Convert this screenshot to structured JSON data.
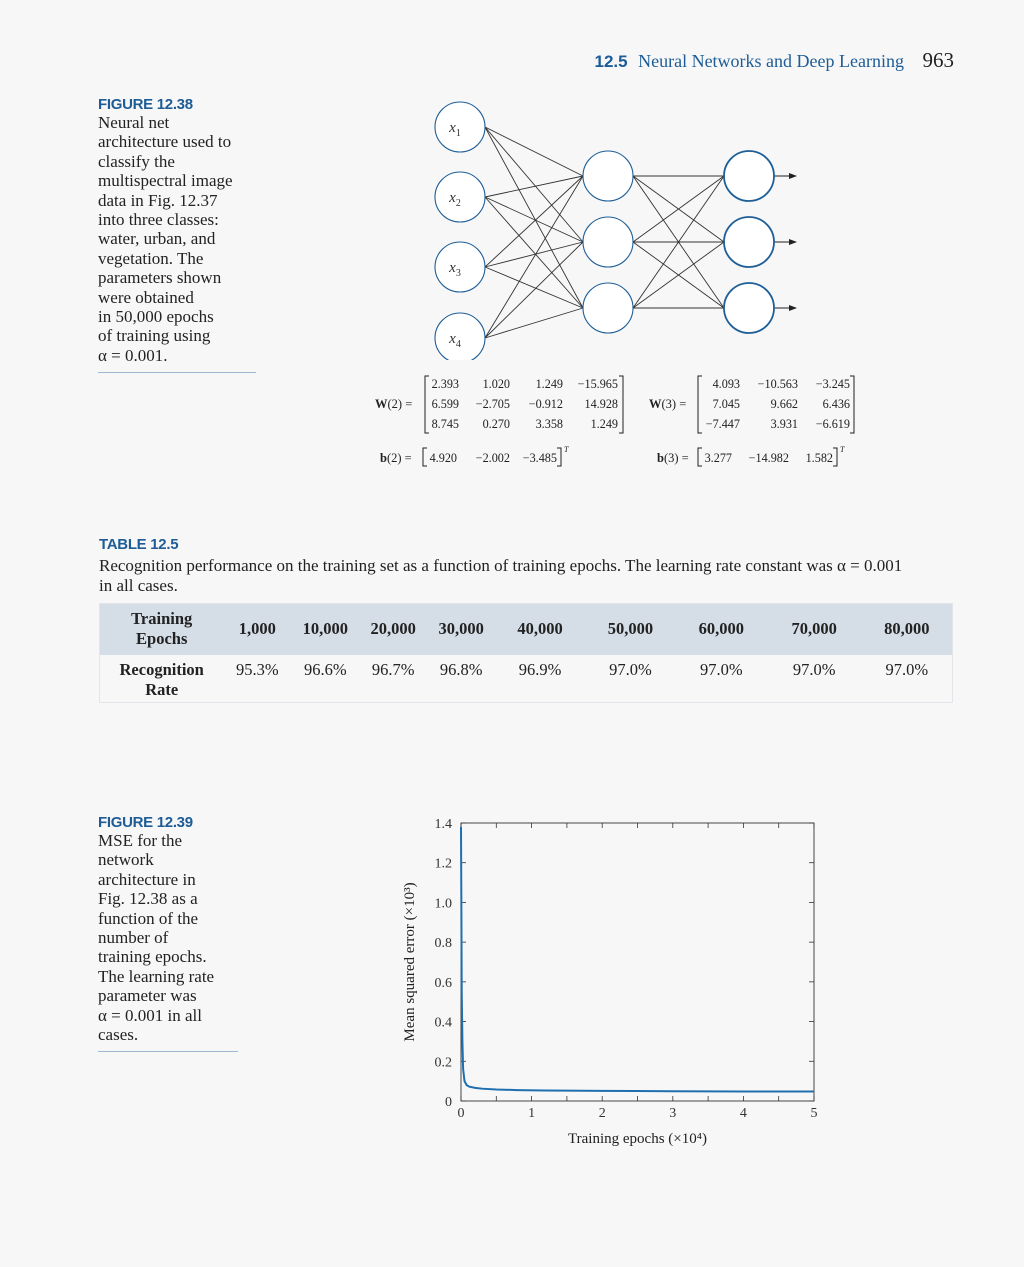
{
  "header": {
    "section_number": "12.5",
    "section_title": "Neural Networks and Deep Learning",
    "page_number": "963"
  },
  "figure_38": {
    "label": "FIGURE 12.38",
    "caption_lines": [
      "Neural net",
      "architecture used to",
      "classify the",
      "multispectral image",
      "data in Fig. 12.37",
      "into three classes:",
      "water, urban, and",
      "vegetation. The",
      "parameters shown",
      "were obtained",
      "in 50,000 epochs",
      "of training using",
      "α = 0.001."
    ],
    "inputs": [
      "x1",
      "x2",
      "x3",
      "x4"
    ],
    "W2_label": "W(2) =",
    "W2": [
      [
        "2.393",
        "1.020",
        "1.249",
        "−15.965"
      ],
      [
        "6.599",
        "−2.705",
        "−0.912",
        "14.928"
      ],
      [
        "8.745",
        "0.270",
        "3.358",
        "1.249"
      ]
    ],
    "W3_label": "W(3) =",
    "W3": [
      [
        "4.093",
        "−10.563",
        "−3.245"
      ],
      [
        "7.045",
        "9.662",
        "6.436"
      ],
      [
        "−7.447",
        "3.931",
        "−6.619"
      ]
    ],
    "b2_label": "b(2) =",
    "b2": [
      "4.920",
      "−2.002",
      "−3.485"
    ],
    "b3_label": "b(3) =",
    "b3": [
      "3.277",
      "−14.982",
      "1.582"
    ],
    "transpose": "T"
  },
  "table": {
    "label": "TABLE 12.5",
    "caption_lines": [
      "Recognition performance on the training set as a function of training epochs. The learning rate constant was α = 0.001",
      "in all cases."
    ],
    "row1_label_lines": [
      "Training",
      "Epochs"
    ],
    "epochs": [
      "1,000",
      "10,000",
      "20,000",
      "30,000",
      "40,000",
      "50,000",
      "60,000",
      "70,000",
      "80,000"
    ],
    "row2_label_lines": [
      "Recognition",
      "Rate"
    ],
    "rates": [
      "95.3%",
      "96.6%",
      "96.7%",
      "96.8%",
      "96.9%",
      "97.0%",
      "97.0%",
      "97.0%",
      "97.0%"
    ]
  },
  "figure_39": {
    "label": "FIGURE 12.39",
    "caption_lines": [
      "MSE for the",
      "network",
      "architecture in",
      "Fig. 12.38 as a",
      "function of the",
      "number of",
      "training epochs.",
      "The learning rate",
      "parameter was",
      "α = 0.001 in all",
      "cases."
    ]
  },
  "chart_data": {
    "type": "line",
    "xlabel": "Training epochs (×10⁴)",
    "ylabel": "Mean squared error (×10³)",
    "xlim": [
      0,
      5
    ],
    "ylim": [
      0,
      1.4
    ],
    "x_ticks": [
      "0",
      "1",
      "2",
      "3",
      "4",
      "5"
    ],
    "y_ticks": [
      "0",
      "0.2",
      "0.4",
      "0.6",
      "0.8",
      "1.0",
      "1.2",
      "1.4"
    ],
    "grid": false,
    "color": "#1f6fae",
    "x": [
      0,
      0.005,
      0.01,
      0.02,
      0.03,
      0.05,
      0.08,
      0.12,
      0.2,
      0.3,
      0.5,
      0.8,
      1.2,
      2.0,
      3.0,
      4.0,
      5.0
    ],
    "y": [
      1.38,
      1.0,
      0.55,
      0.3,
      0.16,
      0.1,
      0.08,
      0.072,
      0.066,
      0.062,
      0.058,
      0.055,
      0.053,
      0.051,
      0.049,
      0.048,
      0.048
    ]
  }
}
